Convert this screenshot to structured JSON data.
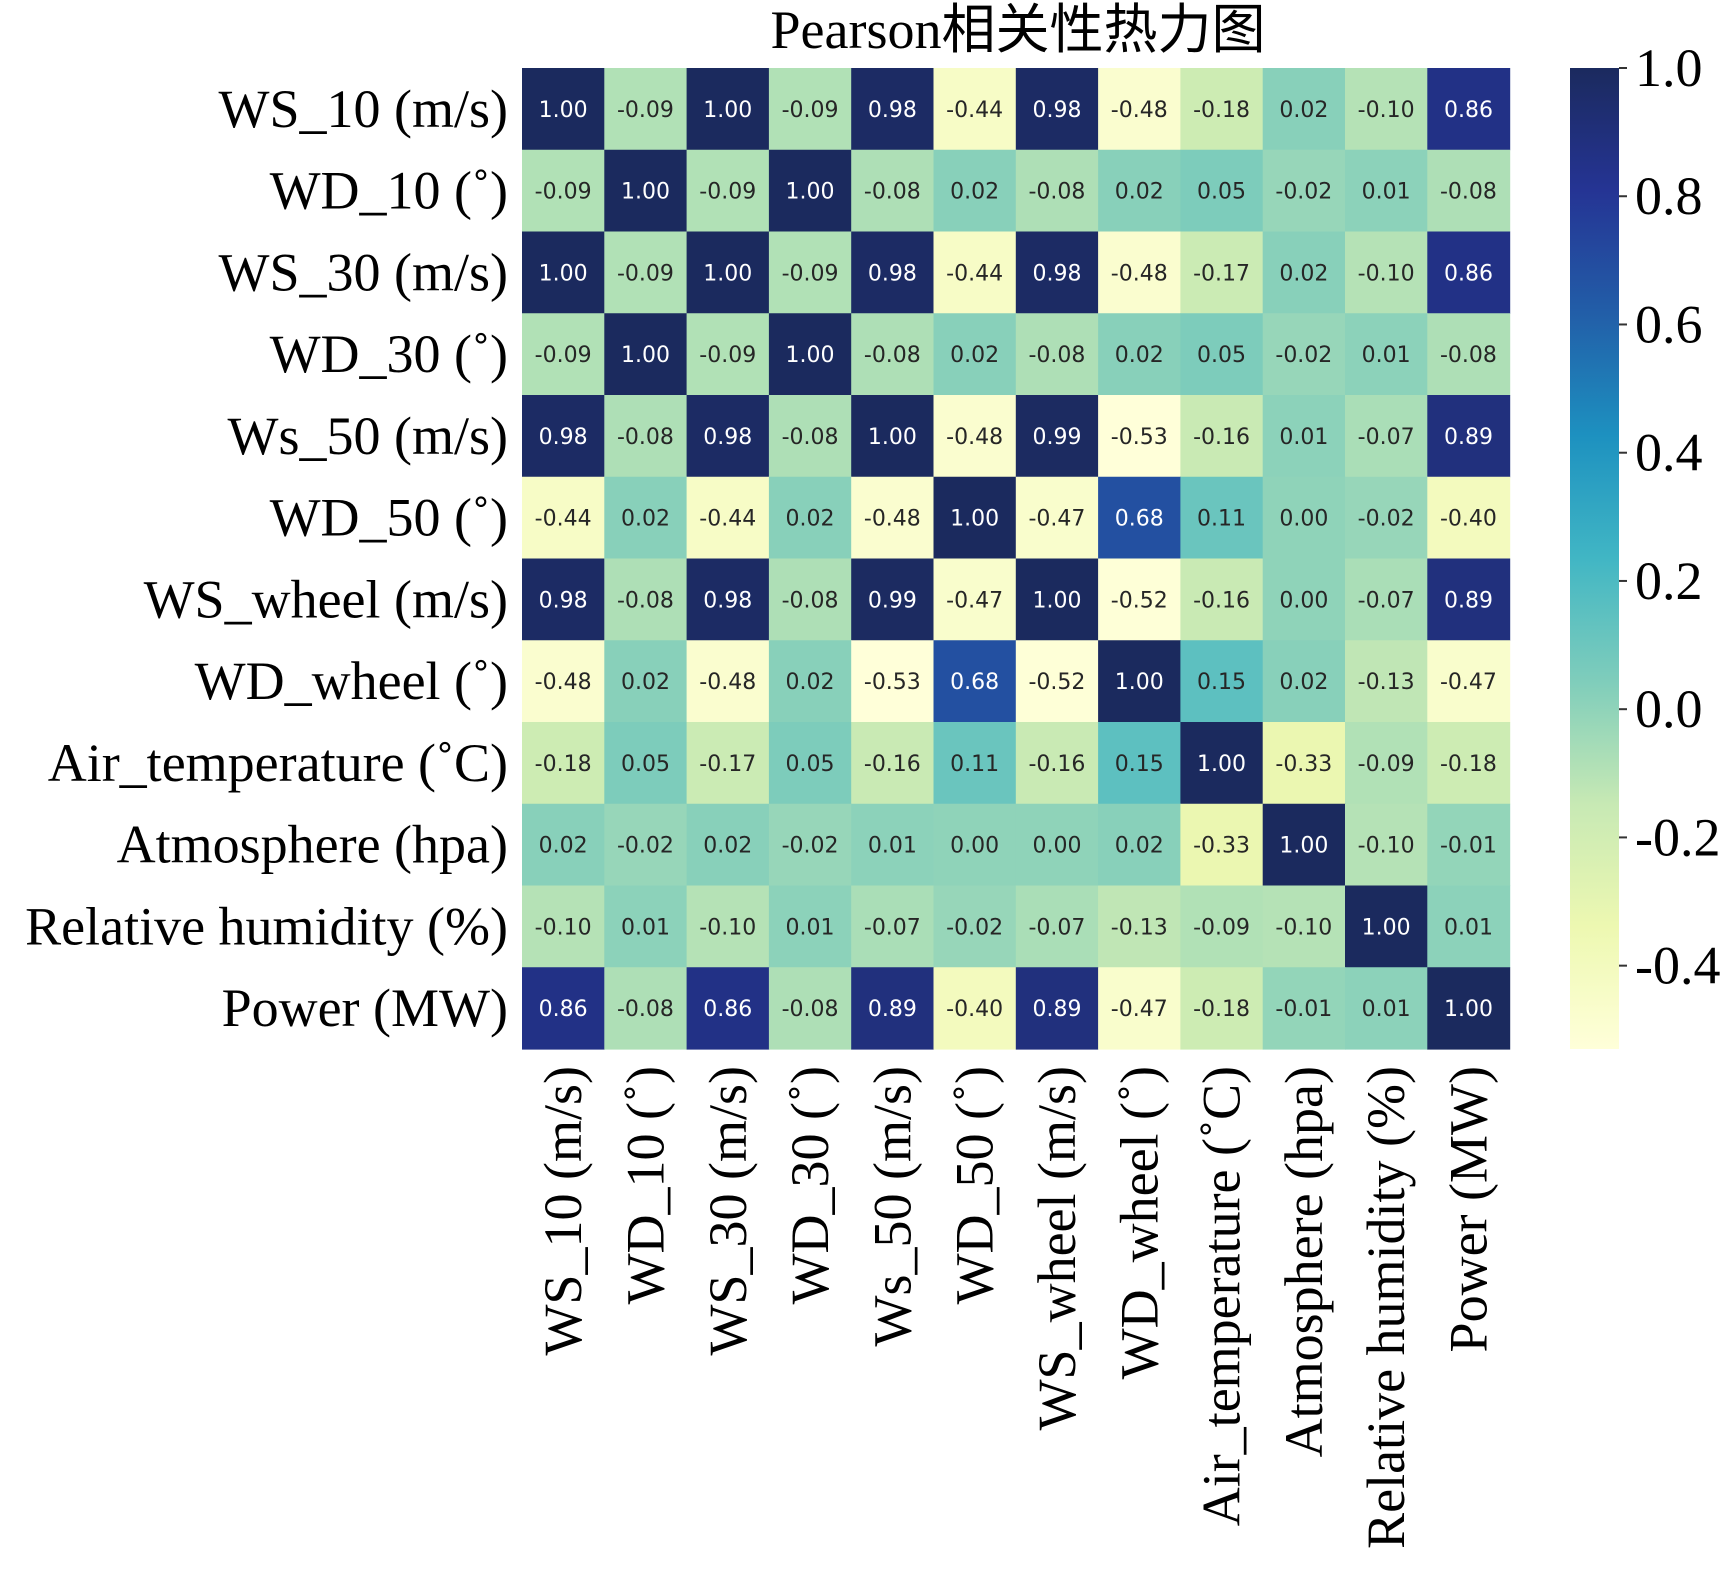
{
  "chart_data": {
    "type": "heatmap",
    "title": "Pearson相关性热力图",
    "row_labels": [
      "WS_10 (m/s)",
      "WD_10 (˚)",
      "WS_30 (m/s)",
      "WD_30 (˚)",
      "Ws_50 (m/s)",
      "WD_50 (˚)",
      "WS_wheel (m/s)",
      "WD_wheel (˚)",
      "Air_temperature (˚C)",
      "Atmosphere (hpa)",
      "Relative humidity (%)",
      "Power (MW)"
    ],
    "col_labels": [
      "WS_10 (m/s)",
      "WD_10 (˚)",
      "WS_30 (m/s)",
      "WD_30 (˚)",
      "Ws_50 (m/s)",
      "WD_50 (˚)",
      "WS_wheel (m/s)",
      "WD_wheel (˚)",
      "Air_temperature (˚C)",
      "Atmosphere (hpa)",
      "Relative humidity (%)",
      "Power (MW)"
    ],
    "values": [
      [
        1.0,
        -0.09,
        1.0,
        -0.09,
        0.98,
        -0.44,
        0.98,
        -0.48,
        -0.18,
        0.02,
        -0.1,
        0.86
      ],
      [
        -0.09,
        1.0,
        -0.09,
        1.0,
        -0.08,
        0.02,
        -0.08,
        0.02,
        0.05,
        -0.02,
        0.01,
        -0.08
      ],
      [
        1.0,
        -0.09,
        1.0,
        -0.09,
        0.98,
        -0.44,
        0.98,
        -0.48,
        -0.17,
        0.02,
        -0.1,
        0.86
      ],
      [
        -0.09,
        1.0,
        -0.09,
        1.0,
        -0.08,
        0.02,
        -0.08,
        0.02,
        0.05,
        -0.02,
        0.01,
        -0.08
      ],
      [
        0.98,
        -0.08,
        0.98,
        -0.08,
        1.0,
        -0.48,
        0.99,
        -0.53,
        -0.16,
        0.01,
        -0.07,
        0.89
      ],
      [
        -0.44,
        0.02,
        -0.44,
        0.02,
        -0.48,
        1.0,
        -0.47,
        0.68,
        0.11,
        0.0,
        -0.02,
        -0.4
      ],
      [
        0.98,
        -0.08,
        0.98,
        -0.08,
        0.99,
        -0.47,
        1.0,
        -0.52,
        -0.16,
        0.0,
        -0.07,
        0.89
      ],
      [
        -0.48,
        0.02,
        -0.48,
        0.02,
        -0.53,
        0.68,
        -0.52,
        1.0,
        0.15,
        0.02,
        -0.13,
        -0.47
      ],
      [
        -0.18,
        0.05,
        -0.17,
        0.05,
        -0.16,
        0.11,
        -0.16,
        0.15,
        1.0,
        -0.33,
        -0.09,
        -0.18
      ],
      [
        0.02,
        -0.02,
        0.02,
        -0.02,
        0.01,
        0.0,
        0.0,
        0.02,
        -0.33,
        1.0,
        -0.1,
        -0.01
      ],
      [
        -0.1,
        0.01,
        -0.1,
        0.01,
        -0.07,
        -0.02,
        -0.07,
        -0.13,
        -0.09,
        -0.1,
        1.0,
        0.01
      ],
      [
        0.86,
        -0.08,
        0.86,
        -0.08,
        0.89,
        -0.4,
        0.89,
        -0.47,
        -0.18,
        -0.01,
        0.01,
        1.0
      ]
    ],
    "value_labels": [
      [
        "1.00",
        "-0.09",
        "1.00",
        "-0.09",
        "0.98",
        "-0.44",
        "0.98",
        "-0.48",
        "-0.18",
        "0.02",
        "-0.10",
        "0.86"
      ],
      [
        "-0.09",
        "1.00",
        "-0.09",
        "1.00",
        "-0.08",
        "0.02",
        "-0.08",
        "0.02",
        "0.05",
        "-0.02",
        "0.01",
        "-0.08"
      ],
      [
        "1.00",
        "-0.09",
        "1.00",
        "-0.09",
        "0.98",
        "-0.44",
        "0.98",
        "-0.48",
        "-0.17",
        "0.02",
        "-0.10",
        "0.86"
      ],
      [
        "-0.09",
        "1.00",
        "-0.09",
        "1.00",
        "-0.08",
        "0.02",
        "-0.08",
        "0.02",
        "0.05",
        "-0.02",
        "0.01",
        "-0.08"
      ],
      [
        "0.98",
        "-0.08",
        "0.98",
        "-0.08",
        "1.00",
        "-0.48",
        "0.99",
        "-0.53",
        "-0.16",
        "0.01",
        "-0.07",
        "0.89"
      ],
      [
        "-0.44",
        "0.02",
        "-0.44",
        "0.02",
        "-0.48",
        "1.00",
        "-0.47",
        "0.68",
        "0.11",
        "0.00",
        "-0.02",
        "-0.40"
      ],
      [
        "0.98",
        "-0.08",
        "0.98",
        "-0.08",
        "0.99",
        "-0.47",
        "1.00",
        "-0.52",
        "-0.16",
        "0.00",
        "-0.07",
        "0.89"
      ],
      [
        "-0.48",
        "0.02",
        "-0.48",
        "0.02",
        "-0.53",
        "0.68",
        "-0.52",
        "1.00",
        "0.15",
        "0.02",
        "-0.13",
        "-0.47"
      ],
      [
        "-0.18",
        "0.05",
        "-0.17",
        "0.05",
        "-0.16",
        "0.11",
        "-0.16",
        "0.15",
        "1.00",
        "-0.33",
        "-0.09",
        "-0.18"
      ],
      [
        "0.02",
        "-0.02",
        "0.02",
        "-0.02",
        "0.01",
        "0.00",
        "0.00",
        "0.02",
        "-0.33",
        "1.00",
        "-0.10",
        "-0.01"
      ],
      [
        "-0.10",
        "0.01",
        "-0.10",
        "0.01",
        "-0.07",
        "-0.02",
        "-0.07",
        "-0.13",
        "-0.09",
        "-0.10",
        "1.00",
        "0.01"
      ],
      [
        "0.86",
        "-0.08",
        "0.86",
        "-0.08",
        "0.89",
        "-0.40",
        "0.89",
        "-0.47",
        "-0.18",
        "-0.01",
        "0.01",
        "1.00"
      ]
    ],
    "colorbar": {
      "range": [
        -0.53,
        1.0
      ],
      "ticks": [
        1.0,
        0.8,
        0.6,
        0.4,
        0.2,
        0.0,
        -0.2,
        -0.4
      ],
      "tick_labels": [
        "1.0",
        "0.8",
        "0.6",
        "0.4",
        "0.2",
        "0.0",
        "-0.2",
        "-0.4"
      ],
      "colormap": "YlGnBu",
      "color_stops": [
        "#ffffd9",
        "#edf8b1",
        "#c7e9b4",
        "#7fcdbb",
        "#41b6c4",
        "#1d91c0",
        "#225ea8",
        "#253494",
        "#1b2a5e"
      ]
    }
  }
}
